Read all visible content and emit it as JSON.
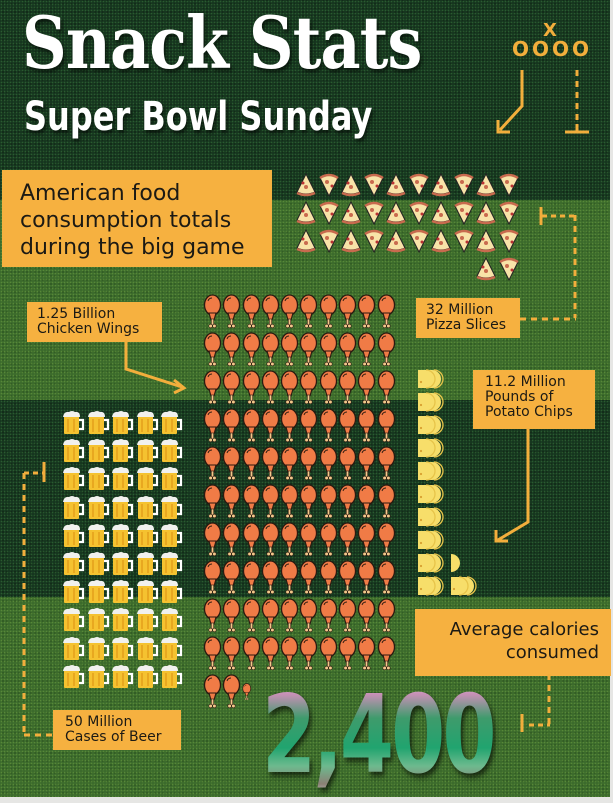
{
  "header": {
    "title": "Snack Stats",
    "subtitle": "Super Bowl Sunday"
  },
  "intro": {
    "line1": "American food",
    "line2": "consumption totals",
    "line3": "during the big game"
  },
  "play_diagram": {
    "defender": "X",
    "linemen": "OOOO"
  },
  "labels": {
    "pizza": {
      "line1": "32 Million",
      "line2": "Pizza Slices"
    },
    "wings": {
      "line1": "1.25 Billion",
      "line2": "Chicken Wings"
    },
    "chips": {
      "line1": "11.2 Million",
      "line2": "Pounds of",
      "line3": "Potato Chips"
    },
    "beer": {
      "line1": "50 Million",
      "line2": "Cases of Beer"
    },
    "calories": {
      "line1": "Average calories",
      "line2": "consumed",
      "value": "2,400"
    }
  },
  "colors": {
    "accent": "#f6b140",
    "field_dark": "#16361f",
    "field_light": "#3c6b2c",
    "wing": "#f07b46",
    "beer": "#f5c230",
    "chip": "#f7de6a",
    "pizza_crust": "#c86a4e",
    "pizza_cheese": "#f8e3a8"
  },
  "chart_data": {
    "type": "pictograph",
    "title": "Snack Stats",
    "subtitle": "Super Bowl Sunday — American food consumption totals during the big game",
    "categories": [
      "Pizza Slices",
      "Chicken Wings",
      "Pounds of Potato Chips",
      "Cases of Beer",
      "Average calories consumed"
    ],
    "values": [
      32000000,
      1250000000,
      11200000,
      50000000,
      2400
    ],
    "value_labels": [
      "32 Million",
      "1.25 Billion",
      "11.2 Million",
      "50 Million",
      "2,400"
    ],
    "icon_counts": {
      "pizza_slices": 32,
      "chicken_wings": 102.5,
      "potato_chip_stacks": 11.2,
      "beer_mugs": 50
    },
    "icon_grid": {
      "pizza": {
        "columns": 10,
        "rows": 4,
        "last_row": 2
      },
      "wings": {
        "columns": 10,
        "rows": 11,
        "last_row": 2.5
      },
      "chips": {
        "columns": 2,
        "rows": 10
      },
      "beer": {
        "columns": 5,
        "rows": 10
      }
    }
  }
}
